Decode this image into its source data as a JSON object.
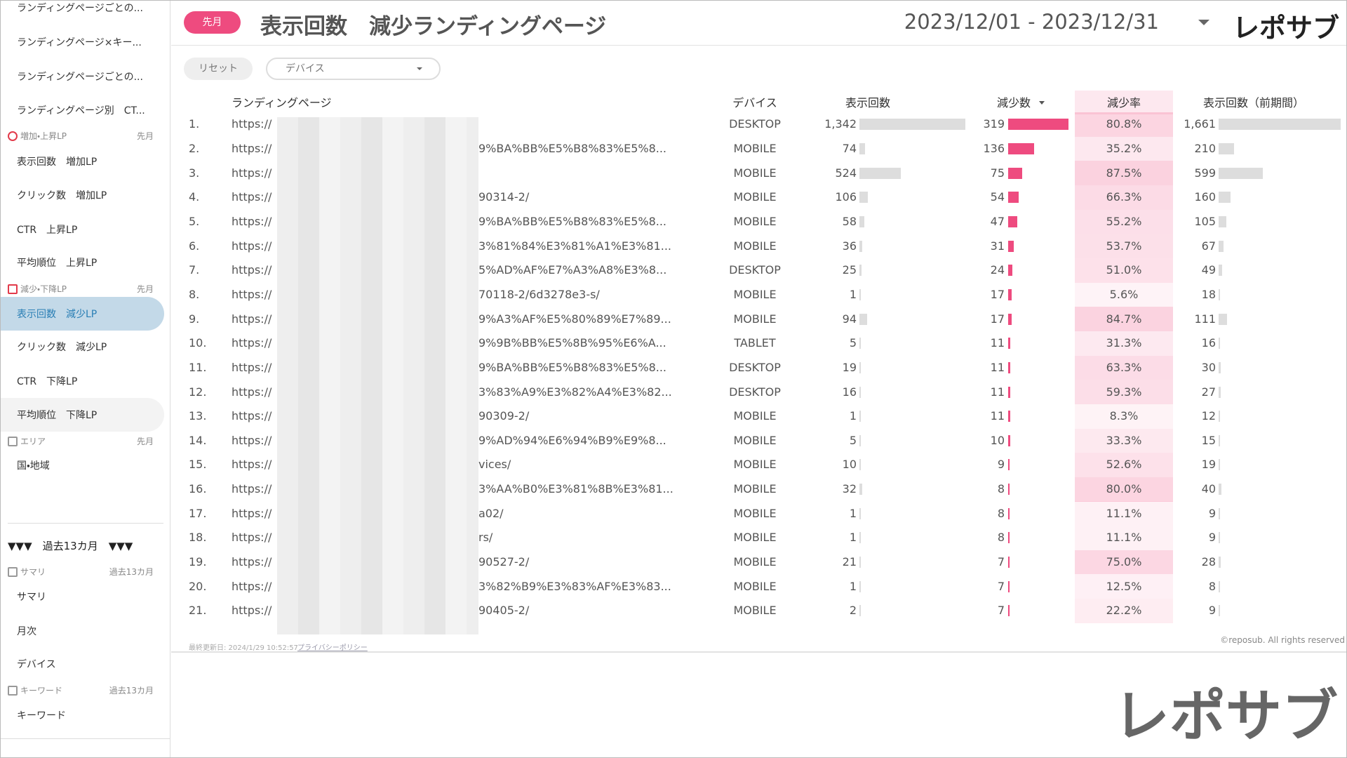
{
  "nav": [
    {
      "label": "ランディングページごとの..."
    },
    {
      "label": "ランディングページ×キー..."
    },
    {
      "label": "ランディングページごとの..."
    },
    {
      "label": "ランディングページ別　CT..."
    },
    {
      "section": "増加・上昇LP",
      "period": "先月"
    },
    {
      "label": "表示回数　増加LP"
    },
    {
      "label": "クリック数　増加LP"
    },
    {
      "label": "CTR　上昇LP"
    },
    {
      "label": "平均順位　上昇LP"
    },
    {
      "section": "減少・下降LP",
      "period": "先月"
    },
    {
      "label": "表示回数　減少LP",
      "active": true
    },
    {
      "label": "クリック数　減少LP"
    },
    {
      "label": "CTR　下降LP"
    },
    {
      "label": "平均順位　下降LP"
    },
    {
      "section": "エリア",
      "period": "先月"
    },
    {
      "label": "国・地域"
    },
    {
      "heading": "▼▼▼　過去13カ月　▼▼▼"
    },
    {
      "section": "サマリ",
      "period": "過去13カ月"
    },
    {
      "label": "サマリ"
    },
    {
      "label": "月次"
    },
    {
      "label": "デバイス"
    },
    {
      "section": "キーワード",
      "period": "過去13カ月"
    },
    {
      "label": "キーワード"
    }
  ],
  "header": {
    "badge": "先月",
    "title": "表示回数　減少ランディングページ",
    "date_range": "2023/12/01 - 2023/12/31",
    "logo": "レポサブ"
  },
  "filters": {
    "reset": "リセット",
    "device": "デバイス"
  },
  "table": {
    "columns": [
      "ランディングページ",
      "デバイス",
      "表示回数",
      "減少数",
      "減少率",
      "表示回数（前期間）"
    ],
    "bar_color": "#dddddd",
    "decrease_color": "#ee4b7f",
    "rows": [
      {
        "no": "1.",
        "url": "https://",
        "device": "DESKTOP",
        "impressions": 1342,
        "decrease": 319,
        "rate": "80.8%",
        "previous": 1661
      },
      {
        "no": "2.",
        "url": "https://",
        "suffix": "9%BA%BB%E5%B8%83%E5%8...",
        "device": "MOBILE",
        "impressions": 74,
        "decrease": 136,
        "rate": "35.2%",
        "previous": 210
      },
      {
        "no": "3.",
        "url": "https://",
        "device": "MOBILE",
        "impressions": 524,
        "decrease": 75,
        "rate": "87.5%",
        "previous": 599
      },
      {
        "no": "4.",
        "url": "https://",
        "suffix": "90314-2/",
        "device": "MOBILE",
        "impressions": 106,
        "decrease": 54,
        "rate": "66.3%",
        "previous": 160
      },
      {
        "no": "5.",
        "url": "https://",
        "suffix": "9%BA%BB%E5%B8%83%E5%8...",
        "device": "MOBILE",
        "impressions": 58,
        "decrease": 47,
        "rate": "55.2%",
        "previous": 105
      },
      {
        "no": "6.",
        "url": "https://",
        "suffix": "3%81%84%E3%81%A1%E3%81...",
        "device": "MOBILE",
        "impressions": 36,
        "decrease": 31,
        "rate": "53.7%",
        "previous": 67
      },
      {
        "no": "7.",
        "url": "https://",
        "suffix": "5%AD%AF%E7%A3%A8%E3%8...",
        "device": "DESKTOP",
        "impressions": 25,
        "decrease": 24,
        "rate": "51.0%",
        "previous": 49
      },
      {
        "no": "8.",
        "url": "https://",
        "suffix": "70118-2/6d3278e3-s/",
        "device": "MOBILE",
        "impressions": 1,
        "decrease": 17,
        "rate": "5.6%",
        "previous": 18
      },
      {
        "no": "9.",
        "url": "https://",
        "suffix": "9%A3%AF%E5%80%89%E7%89...",
        "device": "MOBILE",
        "impressions": 94,
        "decrease": 17,
        "rate": "84.7%",
        "previous": 111
      },
      {
        "no": "10.",
        "url": "https://",
        "suffix": "9%9B%BB%E5%8B%95%E6%A...",
        "device": "TABLET",
        "impressions": 5,
        "decrease": 11,
        "rate": "31.3%",
        "previous": 16
      },
      {
        "no": "11.",
        "url": "https://",
        "suffix": "9%BA%BB%E5%B8%83%E5%8...",
        "device": "DESKTOP",
        "impressions": 19,
        "decrease": 11,
        "rate": "63.3%",
        "previous": 30
      },
      {
        "no": "12.",
        "url": "https://",
        "suffix": "3%83%A9%E3%82%A4%E3%82...",
        "device": "DESKTOP",
        "impressions": 16,
        "decrease": 11,
        "rate": "59.3%",
        "previous": 27
      },
      {
        "no": "13.",
        "url": "https://",
        "suffix": "90309-2/",
        "device": "MOBILE",
        "impressions": 1,
        "decrease": 11,
        "rate": "8.3%",
        "previous": 12
      },
      {
        "no": "14.",
        "url": "https://",
        "suffix": "9%AD%94%E6%94%B9%E9%8...",
        "device": "MOBILE",
        "impressions": 5,
        "decrease": 10,
        "rate": "33.3%",
        "previous": 15
      },
      {
        "no": "15.",
        "url": "https://",
        "suffix": "vices/",
        "device": "MOBILE",
        "impressions": 10,
        "decrease": 9,
        "rate": "52.6%",
        "previous": 19
      },
      {
        "no": "16.",
        "url": "https://",
        "suffix": "3%AA%B0%E3%81%8B%E3%81...",
        "device": "MOBILE",
        "impressions": 32,
        "decrease": 8,
        "rate": "80.0%",
        "previous": 40
      },
      {
        "no": "17.",
        "url": "https://",
        "suffix": "a02/",
        "device": "MOBILE",
        "impressions": 1,
        "decrease": 8,
        "rate": "11.1%",
        "previous": 9
      },
      {
        "no": "18.",
        "url": "https://",
        "suffix": "rs/",
        "device": "MOBILE",
        "impressions": 1,
        "decrease": 8,
        "rate": "11.1%",
        "previous": 9
      },
      {
        "no": "19.",
        "url": "https://",
        "suffix": "90527-2/",
        "device": "MOBILE",
        "impressions": 21,
        "decrease": 7,
        "rate": "75.0%",
        "previous": 28
      },
      {
        "no": "20.",
        "url": "https://",
        "suffix": "3%82%B9%E3%83%AF%E3%83...",
        "device": "MOBILE",
        "impressions": 1,
        "decrease": 7,
        "rate": "12.5%",
        "previous": 8
      },
      {
        "no": "21.",
        "url": "https://",
        "suffix": "90405-2/",
        "device": "MOBILE",
        "impressions": 2,
        "decrease": 7,
        "rate": "22.2%",
        "previous": 9
      }
    ]
  },
  "footer": {
    "updated": "最終更新日: 2024/1/29 10:52:57",
    "privacy": "プライバシーポリシー",
    "copyright": "©reposub. All rights reserved"
  },
  "watermark": "レポサブ"
}
